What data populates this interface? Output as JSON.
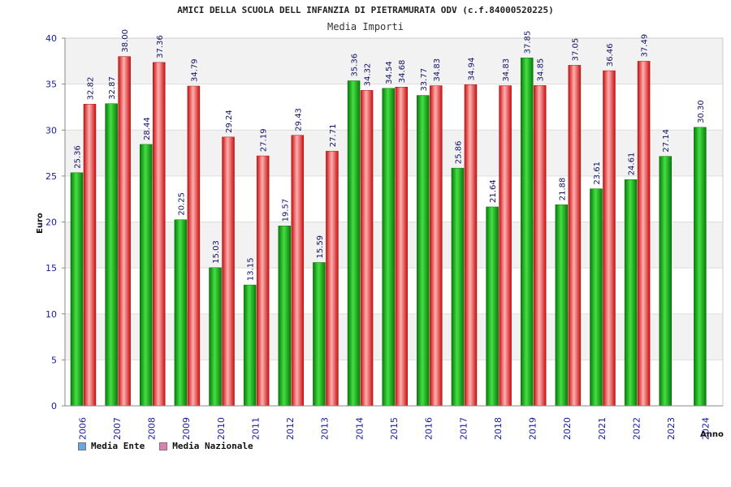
{
  "chart_data": {
    "type": "bar",
    "title": "AMICI DELLA SCUOLA DELL INFANZIA DI PIETRAMURATA ODV (c.f.84000520225)",
    "subtitle": "Media Importi",
    "xlabel": "Anno",
    "ylabel": "Euro",
    "ylim": [
      0,
      40
    ],
    "yticks": [
      "0",
      "5",
      "10",
      "15",
      "20",
      "25",
      "30",
      "35",
      "40"
    ],
    "categories": [
      "2006",
      "2007",
      "2008",
      "2009",
      "2010",
      "2011",
      "2012",
      "2013",
      "2014",
      "2015",
      "2016",
      "2017",
      "2018",
      "2019",
      "2020",
      "2021",
      "2022",
      "2023",
      "2024"
    ],
    "series": [
      {
        "name": "Media Ente",
        "color": "#18a818",
        "values": [
          25.36,
          32.87,
          28.44,
          20.25,
          15.03,
          13.15,
          19.57,
          15.59,
          35.36,
          34.54,
          33.77,
          25.86,
          21.64,
          37.85,
          21.88,
          23.61,
          24.61,
          27.14,
          30.3
        ],
        "labels": [
          "25.36",
          "32.87",
          "28.44",
          "20.25",
          "15.03",
          "13.15",
          "19.57",
          "15.59",
          "35.36",
          "34.54",
          "33.77",
          "25.86",
          "21.64",
          "37.85",
          "21.88",
          "23.61",
          "24.61",
          "27.14",
          "30.30"
        ]
      },
      {
        "name": "Media Nazionale",
        "color": "#e02020",
        "values": [
          32.82,
          38.0,
          37.36,
          34.79,
          29.24,
          27.19,
          29.43,
          27.71,
          34.32,
          34.68,
          34.83,
          34.94,
          34.83,
          34.85,
          37.05,
          36.46,
          37.49,
          null,
          null
        ],
        "labels": [
          "32.82",
          "38.00",
          "37.36",
          "34.79",
          "29.24",
          "27.19",
          "29.43",
          "27.71",
          "34.32",
          "34.68",
          "34.83",
          "34.94",
          "34.83",
          "34.85",
          "37.05",
          "36.46",
          "37.49",
          "",
          ""
        ]
      }
    ],
    "legend": {
      "position": "bottom-left",
      "items": [
        {
          "label": "Media Ente",
          "color": "#6aa6e0"
        },
        {
          "label": "Media Nazionale",
          "color": "#e080b0"
        }
      ]
    },
    "grid": true,
    "background_bands": [
      "#f2f2f2",
      "#ffffff"
    ]
  }
}
